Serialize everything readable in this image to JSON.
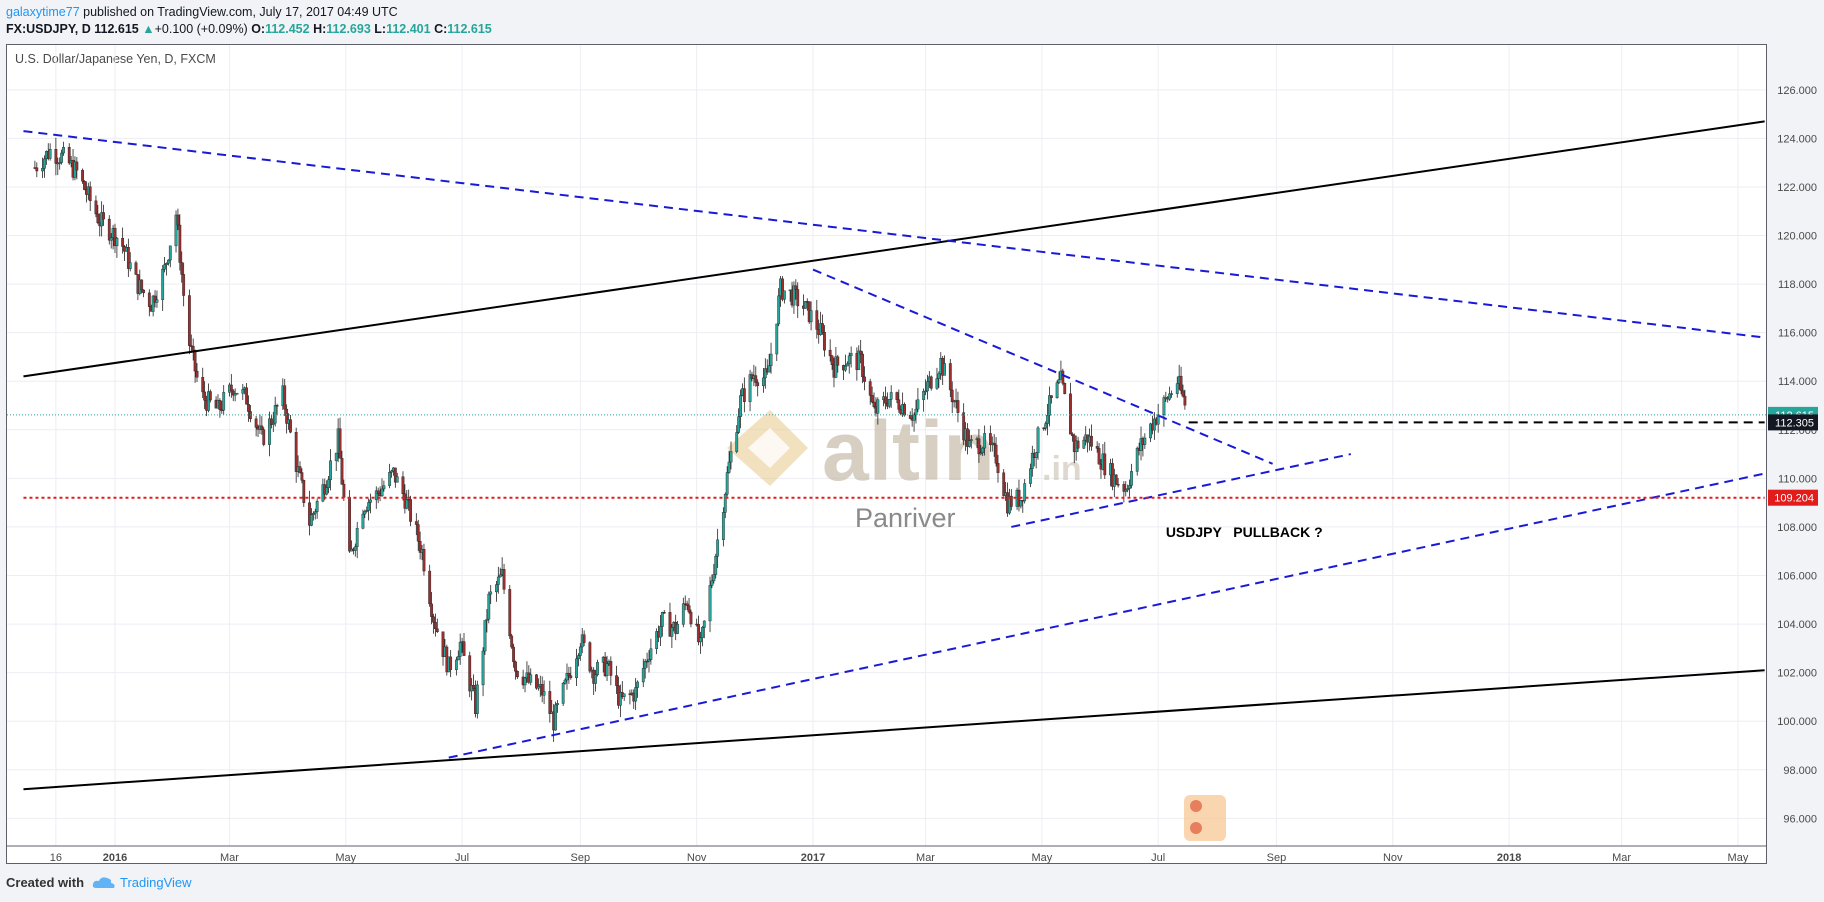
{
  "header": {
    "user": "galaxytime77",
    "published": "published on TradingView.com, July 17, 2017 04:49 UTC",
    "symbol": "FX:USDJPY, D",
    "last": "112.615",
    "change_arrow": "▲",
    "change": "+0.100 (+0.09%)",
    "o_label": "O:",
    "o": "112.452",
    "h_label": "H:",
    "h": "112.693",
    "l_label": "L:",
    "l": "112.401",
    "c_label": "C:",
    "c": "112.615"
  },
  "chart_title": "U.S. Dollar/Japanese Yen, D, FXCM",
  "watermark": {
    "brand": "altin",
    "suffix": ".in",
    "sub": "Panriver"
  },
  "annotation": "USDJPY   PULLBACK ?",
  "footer": {
    "created_with": "Created with",
    "brand": "TradingView"
  },
  "colors": {
    "up": "#26a69a",
    "down": "#9b2f2f",
    "trend_blue": "#1a1ad6",
    "support_red": "#e21b1b",
    "frame": "#5d606b"
  },
  "chart_data": {
    "type": "candlestick",
    "title": "U.S. Dollar/Japanese Yen, D, FXCM",
    "ylim": [
      95,
      128
    ],
    "y_ticks": [
      "96.000",
      "98.000",
      "100.000",
      "102.000",
      "104.000",
      "106.000",
      "108.000",
      "110.000",
      "112.000",
      "114.000",
      "116.000",
      "118.000",
      "120.000",
      "122.000",
      "124.000",
      "126.000"
    ],
    "x_ticks": [
      "16",
      "2016",
      "Mar",
      "May",
      "Jul",
      "Sep",
      "Nov",
      "2017",
      "Mar",
      "May",
      "Jul",
      "Sep",
      "Nov",
      "2018",
      "Mar",
      "May"
    ],
    "x_tick_dates": [
      "2015-12-01",
      "2016-01-01",
      "2016-03-01",
      "2016-05-01",
      "2016-07-01",
      "2016-09-01",
      "2016-11-01",
      "2017-01-01",
      "2017-03-01",
      "2017-05-01",
      "2017-07-01",
      "2017-09-01",
      "2017-11-01",
      "2018-01-01",
      "2018-03-01",
      "2018-05-01"
    ],
    "price_labels": [
      {
        "value": 112.615,
        "text": "112.615",
        "color": "#26a69a"
      },
      {
        "value": 112.305,
        "text": "112.305",
        "color": "#131722"
      },
      {
        "value": 109.204,
        "text": "109.204",
        "color": "#e21b1b"
      }
    ],
    "path_points": [
      [
        "2015-11-20",
        122.8
      ],
      [
        "2015-11-28",
        123.5
      ],
      [
        "2015-12-05",
        123.2
      ],
      [
        "2015-12-12",
        122.6
      ],
      [
        "2015-12-18",
        121.6
      ],
      [
        "2015-12-24",
        120.6
      ],
      [
        "2016-01-04",
        119.8
      ],
      [
        "2016-01-12",
        118.1
      ],
      [
        "2016-01-20",
        117.2
      ],
      [
        "2016-01-27",
        118.6
      ],
      [
        "2016-02-02",
        120.9
      ],
      [
        "2016-02-08",
        115.9
      ],
      [
        "2016-02-15",
        113.4
      ],
      [
        "2016-02-24",
        112.8
      ],
      [
        "2016-03-03",
        113.8
      ],
      [
        "2016-03-10",
        113.3
      ],
      [
        "2016-03-18",
        111.6
      ],
      [
        "2016-03-29",
        113.4
      ],
      [
        "2016-04-05",
        110.6
      ],
      [
        "2016-04-12",
        108.2
      ],
      [
        "2016-04-20",
        109.8
      ],
      [
        "2016-04-27",
        111.6
      ],
      [
        "2016-05-03",
        106.6
      ],
      [
        "2016-05-10",
        108.9
      ],
      [
        "2016-05-18",
        109.4
      ],
      [
        "2016-05-26",
        110.2
      ],
      [
        "2016-06-01",
        109.2
      ],
      [
        "2016-06-10",
        107.0
      ],
      [
        "2016-06-16",
        104.3
      ],
      [
        "2016-06-24",
        102.2
      ],
      [
        "2016-06-30",
        103.2
      ],
      [
        "2016-07-08",
        100.6
      ],
      [
        "2016-07-15",
        105.0
      ],
      [
        "2016-07-22",
        106.0
      ],
      [
        "2016-07-29",
        102.2
      ],
      [
        "2016-08-05",
        101.6
      ],
      [
        "2016-08-12",
        101.2
      ],
      [
        "2016-08-18",
        100.0
      ],
      [
        "2016-08-26",
        101.9
      ],
      [
        "2016-09-01",
        103.4
      ],
      [
        "2016-09-08",
        102.0
      ],
      [
        "2016-09-15",
        102.3
      ],
      [
        "2016-09-22",
        100.8
      ],
      [
        "2016-09-30",
        101.2
      ],
      [
        "2016-10-07",
        102.9
      ],
      [
        "2016-10-14",
        104.1
      ],
      [
        "2016-10-21",
        103.8
      ],
      [
        "2016-10-27",
        105.0
      ],
      [
        "2016-11-03",
        103.0
      ],
      [
        "2016-11-10",
        106.4
      ],
      [
        "2016-11-17",
        110.1
      ],
      [
        "2016-11-24",
        113.2
      ],
      [
        "2016-12-01",
        114.3
      ],
      [
        "2016-12-08",
        114.1
      ],
      [
        "2016-12-15",
        117.8
      ],
      [
        "2016-12-22",
        117.5
      ],
      [
        "2016-12-30",
        116.8
      ],
      [
        "2017-01-05",
        116.0
      ],
      [
        "2017-01-12",
        114.6
      ],
      [
        "2017-01-19",
        114.9
      ],
      [
        "2017-01-26",
        114.8
      ],
      [
        "2017-02-02",
        112.7
      ],
      [
        "2017-02-09",
        113.3
      ],
      [
        "2017-02-16",
        113.1
      ],
      [
        "2017-02-23",
        112.6
      ],
      [
        "2017-03-02",
        113.8
      ],
      [
        "2017-03-09",
        114.8
      ],
      [
        "2017-03-16",
        113.2
      ],
      [
        "2017-03-24",
        111.3
      ],
      [
        "2017-03-31",
        111.5
      ],
      [
        "2017-04-07",
        110.9
      ],
      [
        "2017-04-13",
        109.0
      ],
      [
        "2017-04-20",
        109.2
      ],
      [
        "2017-04-27",
        111.2
      ],
      [
        "2017-05-04",
        112.8
      ],
      [
        "2017-05-11",
        114.0
      ],
      [
        "2017-05-18",
        111.3
      ],
      [
        "2017-05-25",
        111.7
      ],
      [
        "2017-06-01",
        110.8
      ],
      [
        "2017-06-08",
        110.0
      ],
      [
        "2017-06-14",
        109.6
      ],
      [
        "2017-06-21",
        111.2
      ],
      [
        "2017-06-28",
        112.3
      ],
      [
        "2017-07-05",
        113.2
      ],
      [
        "2017-07-11",
        114.0
      ],
      [
        "2017-07-17",
        112.6
      ]
    ],
    "trendlines": [
      {
        "style": "solid",
        "color": "#000000",
        "from": [
          "2015-11-14",
          114.2
        ],
        "to": [
          "2018-05-15",
          124.7
        ]
      },
      {
        "style": "solid",
        "color": "#000000",
        "from": [
          "2015-11-14",
          97.2
        ],
        "to": [
          "2018-05-15",
          102.1
        ]
      },
      {
        "style": "dashed",
        "color": "#1a1ad6",
        "from": [
          "2015-11-14",
          124.3
        ],
        "to": [
          "2018-05-15",
          115.8
        ]
      },
      {
        "style": "dashed",
        "color": "#1a1ad6",
        "from": [
          "2016-06-24",
          98.5
        ],
        "to": [
          "2018-05-15",
          110.2
        ]
      },
      {
        "style": "dashed",
        "color": "#1a1ad6",
        "from": [
          "2017-01-01",
          118.6
        ],
        "to": [
          "2017-08-30",
          110.6
        ]
      },
      {
        "style": "dashed",
        "color": "#1a1ad6",
        "from": [
          "2017-04-15",
          108.0
        ],
        "to": [
          "2017-10-10",
          111.0
        ]
      },
      {
        "style": "dotted",
        "color": "#e21b1b",
        "from": [
          "2015-11-14",
          109.204
        ],
        "to": [
          "2018-05-15",
          109.204
        ]
      },
      {
        "style": "dashed",
        "color": "#000000",
        "from": [
          "2017-07-17",
          112.305
        ],
        "to": [
          "2018-05-15",
          112.305
        ]
      }
    ],
    "annotations": [
      {
        "text": "USDJPY   PULLBACK ?",
        "x": "2017-07-05",
        "y": 107.8
      }
    ],
    "last_price": 112.615,
    "grid": true,
    "legend": "none"
  }
}
